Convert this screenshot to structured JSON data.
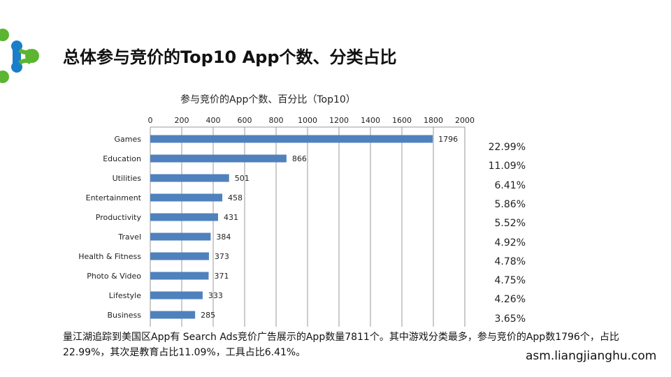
{
  "page": {
    "title": "总体参与竞价的Top10 App个数、分类占比",
    "description": "量江湖追踪到美国区App有 Search Ads竞价广告展示的App数量7811个。其中游戏分类最多，参与竞价的App数1796个，占比22.99%，其次是教育占比11.09%，工具占比6.41%。",
    "website": "asm.liangjianghu.com",
    "colors": {
      "bar": "#4f81bd",
      "logo_green": "#5cb531",
      "logo_blue": "#1a7ec8"
    }
  },
  "chart_data": {
    "type": "bar",
    "orientation": "horizontal",
    "title": "参与竞价的App个数、百分比（Top10）",
    "categories": [
      "Games",
      "Education",
      "Utilities",
      "Entertainment",
      "Productivity",
      "Travel",
      "Health & Fitness",
      "Photo & Video",
      "Lifestyle",
      "Business"
    ],
    "values": [
      1796,
      866,
      501,
      458,
      431,
      384,
      373,
      371,
      333,
      285
    ],
    "percentages": [
      "22.99%",
      "11.09%",
      "6.41%",
      "5.86%",
      "5.52%",
      "4.92%",
      "4.78%",
      "4.75%",
      "4.26%",
      "3.65%"
    ],
    "xlim": [
      0,
      2000
    ],
    "xticks": [
      "0",
      "200",
      "400",
      "600",
      "800",
      "1000",
      "1200",
      "1400",
      "1600",
      "1800",
      "2000"
    ],
    "axis_position": "top",
    "grid": true
  }
}
